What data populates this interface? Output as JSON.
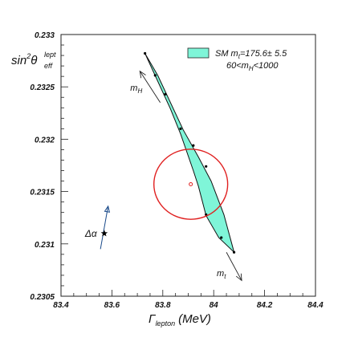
{
  "chart_data": {
    "type": "scatter",
    "xlabel_main": "Γ",
    "xlabel_sub": "lepton",
    "xlabel_unit": "(MeV)",
    "ylabel_main": "sin",
    "ylabel_exp": "2",
    "ylabel_theta": "θ",
    "ylabel_sup": "lept",
    "ylabel_sub": "eff",
    "xlim": [
      83.4,
      84.4
    ],
    "ylim": [
      0.2305,
      0.233
    ],
    "x_ticks": [
      {
        "v": 83.4,
        "label": "83.4"
      },
      {
        "v": 83.6,
        "label": "83.6"
      },
      {
        "v": 83.8,
        "label": "83.8"
      },
      {
        "v": 84.0,
        "label": "84"
      },
      {
        "v": 84.2,
        "label": "84.2"
      },
      {
        "v": 84.4,
        "label": "84.4"
      }
    ],
    "y_ticks": [
      {
        "v": 0.2305,
        "label": "0.2305"
      },
      {
        "v": 0.231,
        "label": "0.231"
      },
      {
        "v": 0.2315,
        "label": "0.2315"
      },
      {
        "v": 0.232,
        "label": "0.232"
      },
      {
        "v": 0.2325,
        "label": "0.2325"
      },
      {
        "v": 0.233,
        "label": "0.233"
      }
    ],
    "legend": {
      "line1": "SM m",
      "line1_sub": "t",
      "line1_rest": "=175.6± 5.5",
      "line2_pre": "60<m",
      "line2_sub": "H",
      "line2_rest": "<1000",
      "fill_color": "#7ff5d8",
      "placement": "top-right"
    },
    "sm_band": {
      "fill_color": "#7ff5d8",
      "upper_edge": [
        [
          83.73,
          0.23282
        ],
        [
          83.78,
          0.23261
        ],
        [
          83.88,
          0.23209
        ],
        [
          83.94,
          0.23183
        ],
        [
          83.99,
          0.2316
        ],
        [
          84.04,
          0.23128
        ],
        [
          84.08,
          0.23092
        ]
      ],
      "lower_edge": [
        [
          83.73,
          0.23282
        ],
        [
          83.83,
          0.23229
        ],
        [
          83.87,
          0.23205
        ],
        [
          83.92,
          0.2317
        ],
        [
          83.94,
          0.23155
        ],
        [
          83.97,
          0.23127
        ],
        [
          84.02,
          0.23106
        ],
        [
          84.08,
          0.23092
        ]
      ],
      "points": [
        [
          83.73,
          0.23282
        ],
        [
          83.77,
          0.23261
        ],
        [
          83.81,
          0.23243
        ],
        [
          83.87,
          0.2321
        ],
        [
          83.92,
          0.23194
        ],
        [
          83.97,
          0.23174
        ],
        [
          83.97,
          0.23128
        ],
        [
          84.03,
          0.23106
        ],
        [
          84.08,
          0.23092
        ]
      ]
    },
    "ellipse": {
      "cx": 83.91,
      "cy": 0.23157,
      "rx": 0.145,
      "ry": 0.000335,
      "color": "#e02020"
    },
    "center_point": {
      "x": 83.91,
      "y": 0.23157
    },
    "delta_alpha": {
      "label": "Δα",
      "star": [
        83.57,
        0.2311
      ],
      "line_from": [
        83.555,
        0.23095
      ],
      "line_to": [
        83.585,
        0.23136
      ],
      "color": "#1a4a8a"
    },
    "mH_arrow": {
      "label": "m",
      "label_sub": "H",
      "from": [
        83.79,
        0.23235
      ],
      "to": [
        83.71,
        0.23265
      ]
    },
    "mt_arrow": {
      "label": "m",
      "label_sub": "t",
      "from": [
        84.05,
        0.23092
      ],
      "to": [
        84.11,
        0.23065
      ]
    }
  }
}
